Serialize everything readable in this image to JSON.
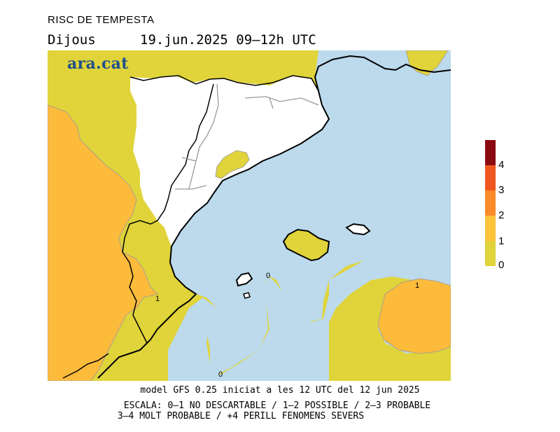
{
  "header": {
    "title": "RISC DE TEMPESTA",
    "day": "Dijous",
    "datetime": "19.jun.2025 09–12h UTC",
    "logo_text": "ara.cat"
  },
  "map": {
    "contour_labels": {
      "zero_a": "0",
      "zero_b": "0",
      "one_a": "1",
      "one_b": "1"
    }
  },
  "legend": {
    "labels": [
      "0",
      "1",
      "2",
      "3",
      "4"
    ],
    "colors": [
      "#e0d43a",
      "#fdc338",
      "#fb8a2b",
      "#f0561f",
      "#8b0a12"
    ]
  },
  "colors": {
    "sea": "#bcdaec",
    "land_uncovered": "#ffffff",
    "level1": "#e0d43a",
    "level2": "#fdbb3b"
  },
  "footer": {
    "model": "model GFS 0.25 iniciat a les 12 UTC del 12 jun 2025",
    "scale_line1": "ESCALA: 0–1 NO DESCARTABLE / 1–2 POSSIBLE / 2–3 PROBABLE",
    "scale_line2": "3–4 MOLT PROBABLE / +4 PERILL FENOMENS SEVERS"
  }
}
